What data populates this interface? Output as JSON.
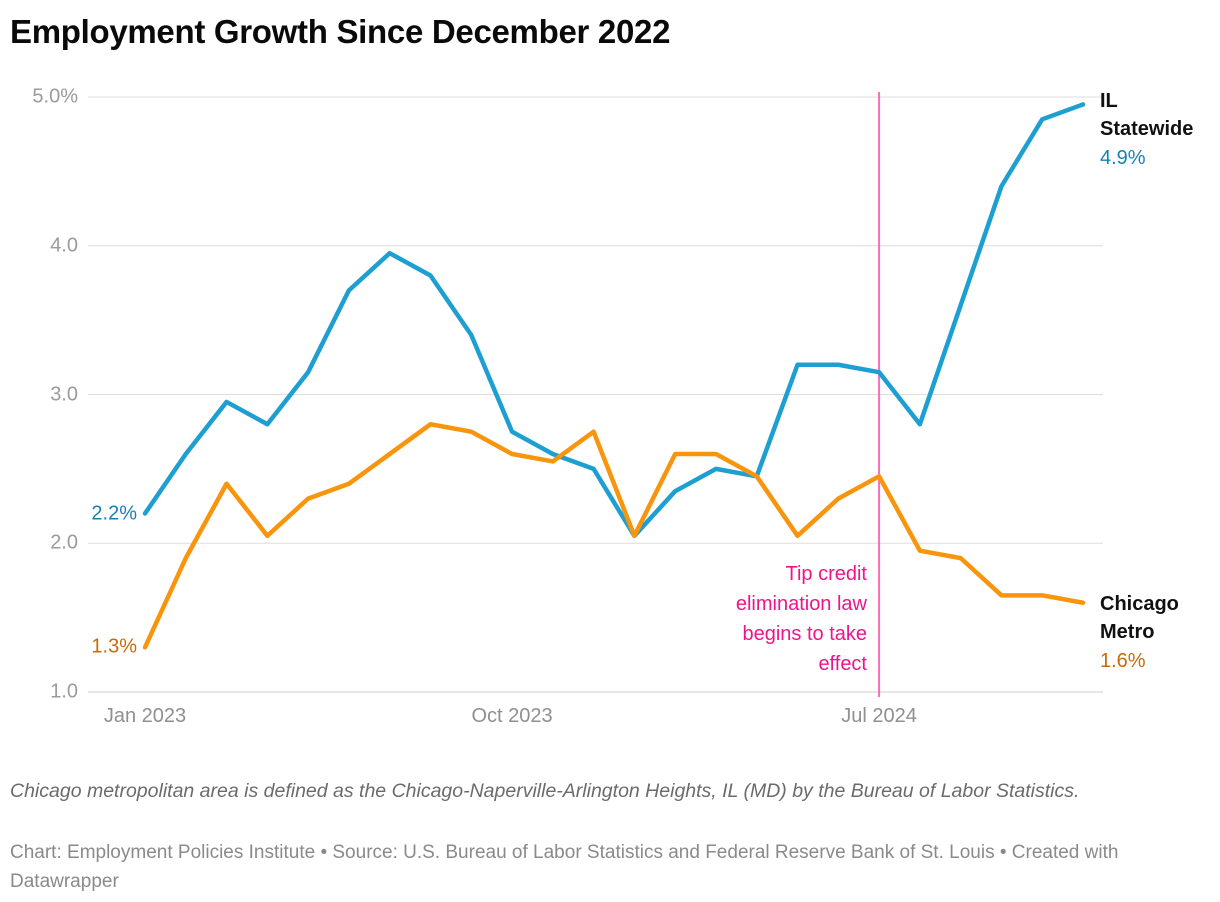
{
  "title": "Employment Growth Since December 2022",
  "colors": {
    "il_line": "#1da0d1",
    "il_text": "#1682b2",
    "chicago_line": "#f9950c",
    "chicago_text": "#c96a08",
    "event_line": "#ff6bb5",
    "event_text": "#f0148c",
    "grid": "#dddddd",
    "baseline": "#cccccc",
    "y_axis_text": "#9b9b9b",
    "x_axis_text": "#8f8f8f",
    "series_name_text": "#111111",
    "note_text": "#6b6b6b",
    "byline_text": "#8a8a8a",
    "background": "#ffffff"
  },
  "axes": {
    "y_ticks": [
      {
        "value": 5.0,
        "label": "5.0%"
      },
      {
        "value": 4.0,
        "label": "4.0"
      },
      {
        "value": 3.0,
        "label": "3.0"
      },
      {
        "value": 2.0,
        "label": "2.0"
      },
      {
        "value": 1.0,
        "label": "1.0"
      }
    ],
    "x_ticks": [
      {
        "index": 0,
        "label": "Jan 2023"
      },
      {
        "index": 9,
        "label": "Oct 2023"
      },
      {
        "index": 18,
        "label": "Jul 2024"
      }
    ]
  },
  "series_labels": {
    "il": {
      "name_line1": "IL",
      "name_line2": "Statewide",
      "start_value": "2.2%",
      "end_value": "4.9%"
    },
    "chicago": {
      "name_line1": "Chicago",
      "name_line2": "Metro",
      "start_value": "1.3%",
      "end_value": "1.6%"
    }
  },
  "annotation": {
    "text": "Tip credit elimination law begins to take effect",
    "lines": [
      "Tip credit",
      "elimination law",
      "begins to take",
      "effect"
    ]
  },
  "note": "Chicago metropolitan area is defined as the Chicago-Naperville-Arlington Heights, IL (MD) by the Bureau of Labor Statistics.",
  "byline": "Chart: Employment Policies Institute • Source: U.S. Bureau of Labor Statistics and Federal Reserve Bank of St. Louis • Created with Datawrapper",
  "chart_data": {
    "type": "line",
    "title": "Employment Growth Since December 2022",
    "x": [
      "Jan 2023",
      "Feb 2023",
      "Mar 2023",
      "Apr 2023",
      "May 2023",
      "Jun 2023",
      "Jul 2023",
      "Aug 2023",
      "Sep 2023",
      "Oct 2023",
      "Nov 2023",
      "Dec 2023",
      "Jan 2024",
      "Feb 2024",
      "Mar 2024",
      "Apr 2024",
      "May 2024",
      "Jun 2024",
      "Jul 2024",
      "Aug 2024",
      "Sep 2024",
      "Oct 2024",
      "Nov 2024",
      "Dec 2024"
    ],
    "series": [
      {
        "name": "IL Statewide",
        "color": "#1da0d1",
        "values": [
          2.2,
          2.6,
          2.95,
          2.8,
          3.15,
          3.7,
          3.95,
          3.8,
          3.4,
          2.75,
          2.6,
          2.5,
          2.05,
          2.35,
          2.5,
          2.45,
          3.2,
          3.2,
          3.15,
          2.8,
          3.6,
          4.4,
          4.85,
          4.95
        ]
      },
      {
        "name": "Chicago Metro",
        "color": "#f9950c",
        "values": [
          1.3,
          1.9,
          2.4,
          2.05,
          2.3,
          2.4,
          2.6,
          2.8,
          2.75,
          2.6,
          2.55,
          2.75,
          2.05,
          2.6,
          2.6,
          2.45,
          2.05,
          2.3,
          2.45,
          1.95,
          1.9,
          1.65,
          1.65,
          1.6
        ]
      }
    ],
    "ylim": [
      1.0,
      5.0
    ],
    "y_tick_values": [
      1.0,
      2.0,
      3.0,
      4.0,
      5.0
    ],
    "x_tick_labels": [
      "Jan 2023",
      "Oct 2023",
      "Jul 2024"
    ],
    "grid": "horizontal",
    "legend_position": "direct-labels",
    "annotation_x": "Jul 2024",
    "annotation_label": "Tip credit elimination law begins to take effect"
  }
}
